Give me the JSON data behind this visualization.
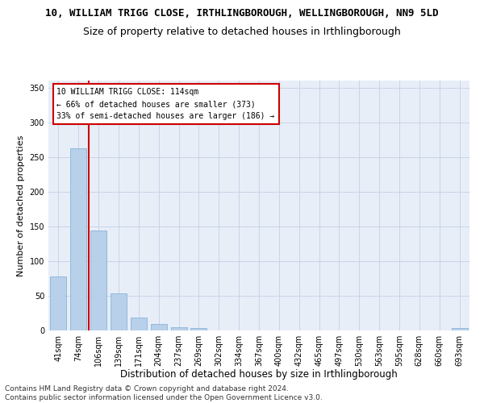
{
  "title": "10, WILLIAM TRIGG CLOSE, IRTHLINGBOROUGH, WELLINGBOROUGH, NN9 5LD",
  "subtitle": "Size of property relative to detached houses in Irthlingborough",
  "xlabel": "Distribution of detached houses by size in Irthlingborough",
  "ylabel": "Number of detached properties",
  "bar_color": "#b8d0ea",
  "bar_edge_color": "#7aadd4",
  "vline_color": "#cc0000",
  "vline_x": 1.5,
  "annotation_text": "10 WILLIAM TRIGG CLOSE: 114sqm\n← 66% of detached houses are smaller (373)\n33% of semi-detached houses are larger (186) →",
  "annotation_box_color": "#ffffff",
  "annotation_box_edge": "#cc0000",
  "categories": [
    "41sqm",
    "74sqm",
    "106sqm",
    "139sqm",
    "171sqm",
    "204sqm",
    "237sqm",
    "269sqm",
    "302sqm",
    "334sqm",
    "367sqm",
    "400sqm",
    "432sqm",
    "465sqm",
    "497sqm",
    "530sqm",
    "563sqm",
    "595sqm",
    "628sqm",
    "660sqm",
    "693sqm"
  ],
  "values": [
    78,
    262,
    144,
    54,
    19,
    9,
    5,
    4,
    0,
    0,
    0,
    0,
    0,
    0,
    0,
    0,
    0,
    0,
    0,
    0,
    4
  ],
  "ylim": [
    0,
    360
  ],
  "yticks": [
    0,
    50,
    100,
    150,
    200,
    250,
    300,
    350
  ],
  "grid_color": "#c8d4e8",
  "bg_color": "#e8eef8",
  "footer_text": "Contains HM Land Registry data © Crown copyright and database right 2024.\nContains public sector information licensed under the Open Government Licence v3.0.",
  "title_fontsize": 9,
  "subtitle_fontsize": 9,
  "xlabel_fontsize": 8.5,
  "ylabel_fontsize": 8,
  "tick_fontsize": 7,
  "footer_fontsize": 6.5
}
